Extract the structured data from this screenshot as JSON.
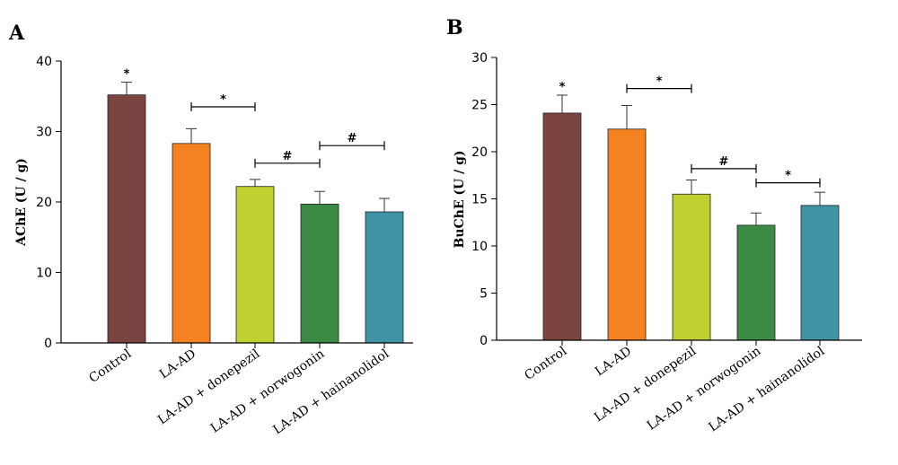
{
  "chart_data": [
    {
      "panel": "A",
      "type": "bar",
      "ylabel": "AChE (U / g)",
      "ylim": [
        0,
        40
      ],
      "yticks": [
        0,
        10,
        20,
        30,
        40
      ],
      "categories": [
        "Control",
        "LA-AD",
        "LA-AD + donepezil",
        "LA-AD + norwogonin",
        "LA-AD + hainanolidol"
      ],
      "values": [
        35.2,
        28.3,
        22.2,
        19.7,
        18.6
      ],
      "errors": [
        1.8,
        2.1,
        1.0,
        1.8,
        1.9
      ],
      "colors": [
        "#7b4441",
        "#f58220",
        "#bfd130",
        "#3b8b45",
        "#3f93a5"
      ],
      "bar_marks": [
        {
          "bar": 0,
          "text": "*"
        }
      ],
      "comparisons": [
        {
          "from": 1,
          "to": 2,
          "text": "*",
          "y": 33.5
        },
        {
          "from": 2,
          "to": 3,
          "text": "#",
          "y": 25.5
        },
        {
          "from": 3,
          "to": 4,
          "text": "#",
          "y": 28.0
        }
      ]
    },
    {
      "panel": "B",
      "type": "bar",
      "ylabel": "BuChE (U / g)",
      "ylim": [
        0,
        30
      ],
      "yticks": [
        0,
        5,
        10,
        15,
        20,
        25,
        30
      ],
      "categories": [
        "Control",
        "LA-AD",
        "LA-AD + donepezil",
        "LA-AD + norwogonin",
        "LA-AD + hainanolidol"
      ],
      "values": [
        24.1,
        22.4,
        15.5,
        12.2,
        14.3
      ],
      "errors": [
        1.9,
        2.5,
        1.5,
        1.3,
        1.4
      ],
      "colors": [
        "#7b4441",
        "#f58220",
        "#bfd130",
        "#3b8b45",
        "#3f93a5"
      ],
      "bar_marks": [
        {
          "bar": 0,
          "text": "*"
        }
      ],
      "comparisons": [
        {
          "from": 1,
          "to": 2,
          "text": "*",
          "y": 26.7
        },
        {
          "from": 2,
          "to": 3,
          "text": "#",
          "y": 18.2
        },
        {
          "from": 3,
          "to": 4,
          "text": "*",
          "y": 16.7
        }
      ]
    }
  ]
}
